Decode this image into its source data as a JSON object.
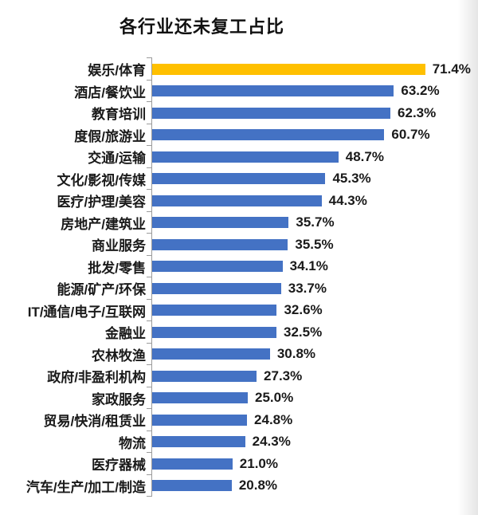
{
  "chart_data": {
    "type": "bar",
    "orientation": "horizontal",
    "title": "各行业还未复工占比",
    "categories": [
      "娱乐/体育",
      "酒店/餐饮业",
      "教育培训",
      "度假/旅游业",
      "交通/运输",
      "文化/影视/传媒",
      "医疗/护理/美容",
      "房地产/建筑业",
      "商业服务",
      "批发/零售",
      "能源/矿产/环保",
      "IT/通信/电子/互联网",
      "金融业",
      "农林牧渔",
      "政府/非盈利机构",
      "家政服务",
      "贸易/快消/租赁业",
      "物流",
      "医疗器械",
      "汽车/生产/加工/制造"
    ],
    "values": [
      71.4,
      63.2,
      62.3,
      60.7,
      48.7,
      45.3,
      44.3,
      35.7,
      35.5,
      34.1,
      33.7,
      32.6,
      32.5,
      30.8,
      27.3,
      25.0,
      24.8,
      24.3,
      21.0,
      20.8
    ],
    "value_labels": [
      "71.4%",
      "63.2%",
      "62.3%",
      "60.7%",
      "48.7%",
      "45.3%",
      "44.3%",
      "35.7%",
      "35.5%",
      "34.1%",
      "33.7%",
      "32.6%",
      "32.5%",
      "30.8%",
      "27.3%",
      "25.0%",
      "24.8%",
      "24.3%",
      "21.0%",
      "20.8%"
    ],
    "unit": "%",
    "xlim": [
      0,
      80
    ],
    "grid": false,
    "legend": "none",
    "colors": {
      "highlight_bar": "#FFC000",
      "default_bar": "#4472C4",
      "axis": "#9b9b9b",
      "text": "#1a1a1a"
    },
    "highlight_index": 0
  }
}
